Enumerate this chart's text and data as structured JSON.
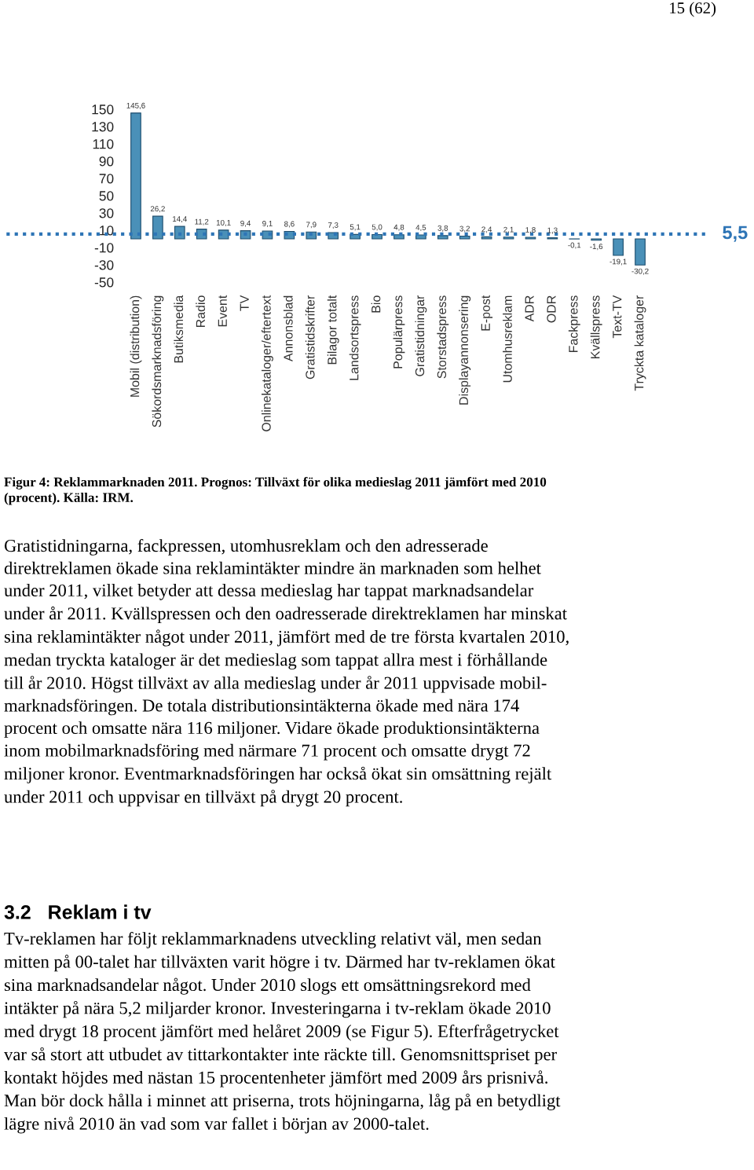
{
  "chart_data": {
    "type": "bar",
    "title": "Figur 4: Reklammarknaden 2011. Prognos: Tillväxt för olika medieslag 2011 jämfört med 2010\n(procent). Källa: IRM.",
    "categories": [
      "Mobil (distribution)",
      "Sökordsmarknadsföring",
      "Butiksmedia",
      "Radio",
      "Event",
      "TV",
      "Onlinekataloger/eftertext",
      "Annonsblad",
      "Gratistidskrifter",
      "Bilagor totalt",
      "Landsortspress",
      "Bio",
      "Populärpress",
      "Gratistidningar",
      "Storstadspress",
      "Displayannonsering",
      "E-post",
      "Utomhusreklam",
      "ADR",
      "ODR",
      "Fackpress",
      "Kvällspress",
      "Text-TV",
      "Tryckta kataloger"
    ],
    "values": [
      145.6,
      26.2,
      14.4,
      11.2,
      10.1,
      9.4,
      9.1,
      8.6,
      7.9,
      7.3,
      5.1,
      5.0,
      4.8,
      4.5,
      3.8,
      3.2,
      2.4,
      2.1,
      1.8,
      1.3,
      -0.1,
      -1.6,
      -19.1,
      -30.2
    ],
    "value_labels": [
      "145,6",
      "26,2",
      "14,4",
      "11,2",
      "10,1",
      "9,4",
      "9,1",
      "8,6",
      "7,9",
      "7,3",
      "5,1",
      "5,0",
      "4,8",
      "4,5",
      "3,8",
      "3,2",
      "2,4",
      "2,1",
      "1,8",
      "1,3",
      "-0,1",
      "-1,6",
      "-19,1",
      "-30,2"
    ],
    "color": "#4a90b8",
    "ylim": [
      -50,
      150
    ],
    "yticks": [
      150,
      130,
      110,
      90,
      70,
      50,
      30,
      10,
      -10,
      -30,
      -50
    ],
    "grid": false,
    "ref_lines": [
      {
        "axis": "y",
        "value": 5.5,
        "label": "5,5",
        "color": "#2e75b6",
        "line_style": "dotted"
      }
    ],
    "annotations": [
      "15 (62)",
      "Gratistidningarna, fackpressen, utomhusreklam och den adresserade\ndirektreklamen ökade sina reklamintäkter mindre än marknaden som helhet\nunder 2011, vilket betyder att dessa medieslag har tappat marknadsandelar\nunder år 2011. Kvällspressen och den oadresserade direktreklamen har minskat\nsina reklamintäkter något under 2011, jämfört med de tre första kvartalen 2010,\nmedan tryckta kataloger är det medieslag som tappat allra mest i förhållande\ntill år 2010. Högst tillväxt av alla medieslag under år 2011 uppvisade mobil-\nmarknadsföringen. De totala distributionsintäkterna ökade med nära 174\nprocent och omsatte nära 116 miljoner. Vidare ökade produktionsintäkterna\ninom mobilmarknadsföring med närmare 71 procent och omsatte drygt 72\nmiljoner kronor. Eventmarknadsföringen har också ökat sin omsättning rejält\nunder 2011 och uppvisar en tillväxt på drygt 20 procent.",
      "3.2   Reklam i tv",
      "Tv-reklamen har följt reklammarknadens utveckling relativt väl, men sedan\nmitten på 00-talet har tillväxten varit högre i tv. Därmed har tv-reklamen ökat\nsina marknadsandelar något. Under 2010 slogs ett omsättningsrekord med\nintäkter på nära 5,2 miljarder kronor. Investeringarna i tv-reklam ökade 2010\nmed drygt 18 procent jämfört med helåret 2009 (se Figur 5). Efterfrågetrycket\nvar så stort att utbudet av tittarkontakter inte räckte till. Genomsnittspriset per\nkontakt höjdes med nästan 15 procentenheter jämfört med 2009 års prisnivå.\nMan bör dock hålla i minnet att priserna, trots höjningarna, låg på en betydligt\nlägre nivå 2010 än vad som var fallet i början av 2000-talet."
    ]
  }
}
